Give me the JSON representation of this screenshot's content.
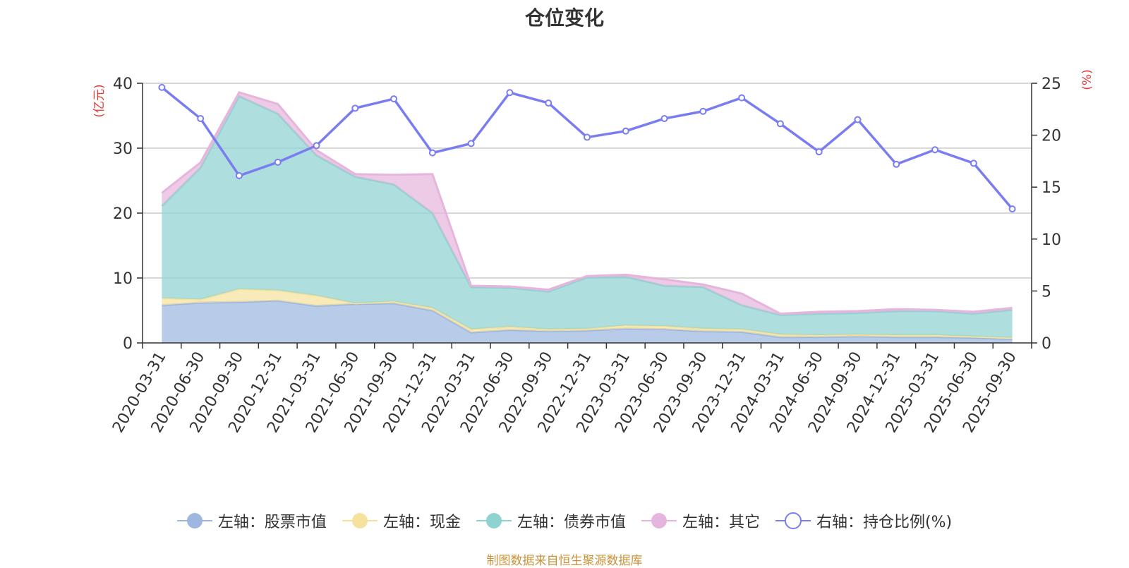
{
  "chart_data": {
    "type": "area",
    "title": "仓位变化",
    "left_axis_label": "(亿元)",
    "right_axis_label": "(%)",
    "left_ylim": [
      0,
      40
    ],
    "left_ticks": [
      0,
      10,
      20,
      30,
      40
    ],
    "right_ylim": [
      0,
      25
    ],
    "right_ticks": [
      0,
      5,
      10,
      15,
      20,
      25
    ],
    "categories": [
      "2020-03-31",
      "2020-06-30",
      "2020-09-30",
      "2020-12-31",
      "2021-03-31",
      "2021-06-30",
      "2021-09-30",
      "2021-12-31",
      "2022-03-31",
      "2022-06-30",
      "2022-09-30",
      "2022-12-31",
      "2023-03-31",
      "2023-06-30",
      "2023-09-30",
      "2023-12-31",
      "2024-03-31",
      "2024-06-30",
      "2024-09-30",
      "2024-12-31",
      "2025-03-31",
      "2025-06-30",
      "2025-09-30"
    ],
    "series": [
      {
        "name": "左轴：股票市值",
        "axis": "left",
        "type": "stacked-area",
        "color": "#9db7e0",
        "values": [
          5.8,
          6.2,
          6.3,
          6.5,
          5.7,
          6.0,
          6.1,
          5.0,
          1.6,
          2.0,
          1.8,
          1.9,
          2.2,
          2.1,
          1.8,
          1.7,
          0.9,
          0.9,
          1.0,
          0.9,
          0.9,
          0.8,
          0.6
        ]
      },
      {
        "name": "左轴：现金",
        "axis": "left",
        "type": "stacked-area",
        "color": "#f5e29e",
        "values": [
          1.1,
          0.5,
          2.0,
          1.6,
          1.6,
          0.1,
          0.3,
          0.4,
          0.5,
          0.5,
          0.3,
          0.3,
          0.5,
          0.5,
          0.4,
          0.4,
          0.4,
          0.3,
          0.3,
          0.3,
          0.3,
          0.2,
          0.2
        ]
      },
      {
        "name": "左轴：债券市值",
        "axis": "left",
        "type": "stacked-area",
        "color": "#8fd3d1",
        "values": [
          14.2,
          20.3,
          29.7,
          27.2,
          21.6,
          19.5,
          18.0,
          14.6,
          6.5,
          6.0,
          5.8,
          7.9,
          7.5,
          6.2,
          6.4,
          3.7,
          3.0,
          3.3,
          3.3,
          3.7,
          3.7,
          3.5,
          4.3
        ]
      },
      {
        "name": "左轴：其它",
        "axis": "left",
        "type": "stacked-area",
        "color": "#e6b5dd",
        "values": [
          2.0,
          0.8,
          0.6,
          1.5,
          0.8,
          0.4,
          1.5,
          6.0,
          0.2,
          0.2,
          0.3,
          0.2,
          0.3,
          1.0,
          0.4,
          1.8,
          0.2,
          0.3,
          0.3,
          0.3,
          0.2,
          0.3,
          0.3
        ]
      },
      {
        "name": "右轴：持仓比例(%)",
        "axis": "right",
        "type": "line",
        "color": "#7a7df0",
        "values": [
          24.6,
          21.6,
          16.1,
          17.4,
          19.0,
          22.6,
          23.5,
          18.3,
          19.2,
          24.1,
          23.1,
          19.8,
          20.4,
          21.6,
          22.3,
          23.6,
          21.1,
          18.4,
          21.5,
          17.2,
          18.6,
          17.3,
          12.9
        ]
      }
    ],
    "grid": true,
    "legend_position": "bottom"
  },
  "source_note": "制图数据来自恒生聚源数据库"
}
